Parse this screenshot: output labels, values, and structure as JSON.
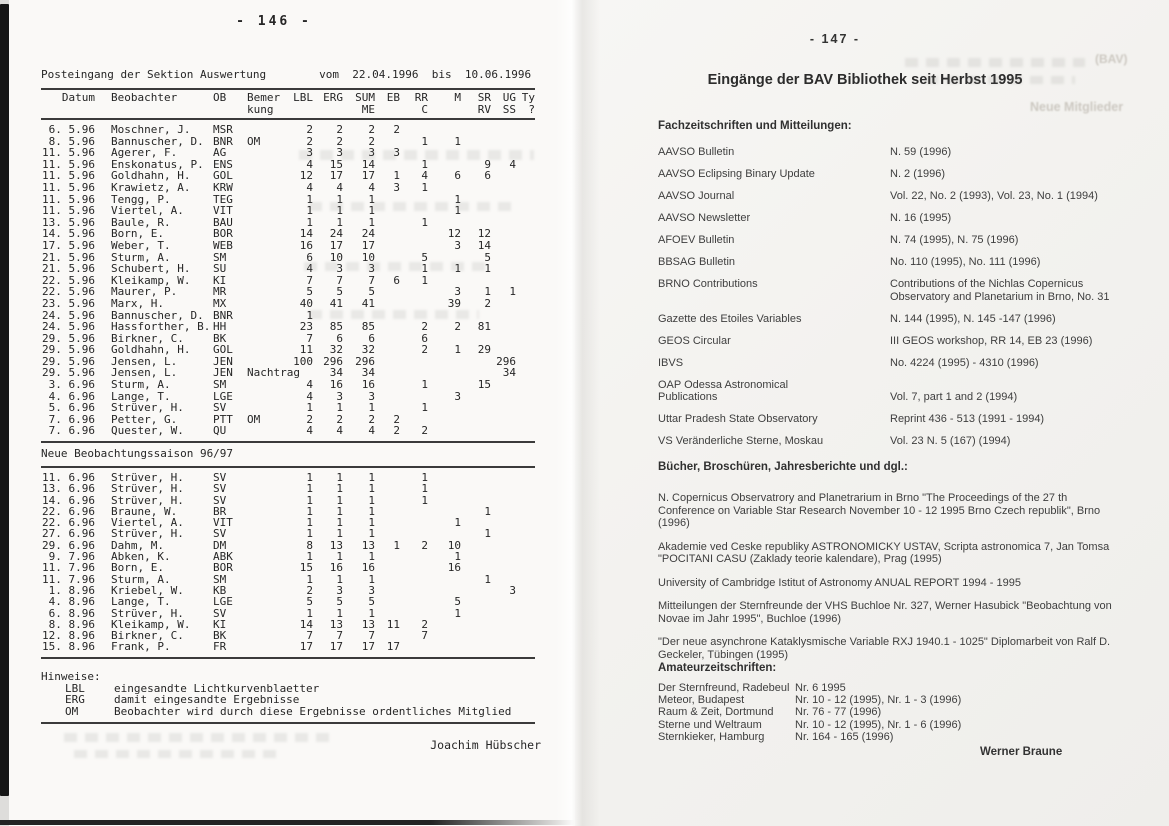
{
  "left_page": {
    "page_number": "- 146 -",
    "title_line": "Posteingang der Sektion Auswertung        vom  22.04.1996  bis  10.06.1996",
    "columns": [
      {
        "l1": "Datum",
        "l2": ""
      },
      {
        "l1": "Beobachter",
        "l2": ""
      },
      {
        "l1": "OB",
        "l2": ""
      },
      {
        "l1": "Bemer",
        "l2": "kung"
      },
      {
        "l1": "LBL",
        "l2": ""
      },
      {
        "l1": "ERG",
        "l2": ""
      },
      {
        "l1": "SUM",
        "l2": "ME"
      },
      {
        "l1": "EB",
        "l2": ""
      },
      {
        "l1": "RR",
        "l2": "C"
      },
      {
        "l1": "M",
        "l2": ""
      },
      {
        "l1": "SR",
        "l2": "RV"
      },
      {
        "l1": "UG",
        "l2": "SS"
      },
      {
        "l1": "Ty",
        "l2": "?"
      }
    ],
    "table1_rows": [
      [
        "6. 5.96",
        "Moschner, J.",
        "MSR",
        "",
        "2",
        "2",
        "2",
        "2",
        "",
        "",
        "",
        "",
        ""
      ],
      [
        "8. 5.96",
        "Bannuscher, D.",
        "BNR",
        "OM",
        "2",
        "2",
        "2",
        "",
        "1",
        "1",
        "",
        "",
        ""
      ],
      [
        "11. 5.96",
        "Agerer, F.",
        "AG",
        "",
        "3",
        "3",
        "3",
        "3",
        "",
        "",
        "",
        "",
        ""
      ],
      [
        "11. 5.96",
        "Enskonatus, P.",
        "ENS",
        "",
        "4",
        "15",
        "14",
        "",
        "1",
        "",
        "9",
        "4",
        ""
      ],
      [
        "11. 5.96",
        "Goldhahn, H.",
        "GOL",
        "",
        "12",
        "17",
        "17",
        "1",
        "4",
        "6",
        "6",
        "",
        ""
      ],
      [
        "11. 5.96",
        "Krawietz, A.",
        "KRW",
        "",
        "4",
        "4",
        "4",
        "3",
        "1",
        "",
        "",
        "",
        ""
      ],
      [
        "11. 5.96",
        "Tengg, P.",
        "TEG",
        "",
        "1",
        "1",
        "1",
        "",
        "",
        "1",
        "",
        "",
        ""
      ],
      [
        "11. 5.96",
        "Viertel, A.",
        "VIT",
        "",
        "1",
        "1",
        "1",
        "",
        "",
        "1",
        "",
        "",
        ""
      ],
      [
        "13. 5.96",
        "Baule, R.",
        "BAU",
        "",
        "1",
        "1",
        "1",
        "",
        "1",
        "",
        "",
        "",
        ""
      ],
      [
        "14. 5.96",
        "Born, E.",
        "BOR",
        "",
        "14",
        "24",
        "24",
        "",
        "",
        "12",
        "12",
        "",
        ""
      ],
      [
        "17. 5.96",
        "Weber, T.",
        "WEB",
        "",
        "16",
        "17",
        "17",
        "",
        "",
        "3",
        "14",
        "",
        ""
      ],
      [
        "21. 5.96",
        "Sturm, A.",
        "SM",
        "",
        "6",
        "10",
        "10",
        "",
        "5",
        "",
        "5",
        "",
        ""
      ],
      [
        "21. 5.96",
        "Schubert, H.",
        "SU",
        "",
        "4",
        "3",
        "3",
        "",
        "1",
        "1",
        "1",
        "",
        ""
      ],
      [
        "22. 5.96",
        "Kleikamp, W.",
        "KI",
        "",
        "7",
        "7",
        "7",
        "6",
        "1",
        "",
        "",
        "",
        ""
      ],
      [
        "22. 5.96",
        "Maurer, P.",
        "MR",
        "",
        "5",
        "5",
        "5",
        "",
        "",
        "3",
        "1",
        "1",
        ""
      ],
      [
        "23. 5.96",
        "Marx, H.",
        "MX",
        "",
        "40",
        "41",
        "41",
        "",
        "",
        "39",
        "2",
        "",
        ""
      ],
      [
        "24. 5.96",
        "Bannuscher, D.",
        "BNR",
        "",
        "1",
        "",
        "",
        "",
        "",
        "",
        "",
        "",
        ""
      ],
      [
        "24. 5.96",
        "Hassforther, B.",
        "HH",
        "",
        "23",
        "85",
        "85",
        "",
        "2",
        "2",
        "81",
        "",
        ""
      ],
      [
        "29. 5.96",
        "Birkner, C.",
        "BK",
        "",
        "7",
        "6",
        "6",
        "",
        "6",
        "",
        "",
        "",
        ""
      ],
      [
        "29. 5.96",
        "Goldhahn, H.",
        "GOL",
        "",
        "11",
        "32",
        "32",
        "",
        "2",
        "1",
        "29",
        "",
        ""
      ],
      [
        "29. 5.96",
        "Jensen, L.",
        "JEN",
        "",
        "100",
        "296",
        "296",
        "",
        "",
        "",
        "",
        "296",
        ""
      ],
      [
        "29. 5.96",
        "Jensen, L.",
        "JEN",
        "Nachtrag",
        "",
        "34",
        "34",
        "",
        "",
        "",
        "",
        "34",
        ""
      ],
      [
        "3. 6.96",
        "Sturm, A.",
        "SM",
        "",
        "4",
        "16",
        "16",
        "",
        "1",
        "",
        "15",
        "",
        ""
      ],
      [
        "4. 6.96",
        "Lange, T.",
        "LGE",
        "",
        "4",
        "3",
        "3",
        "",
        "",
        "3",
        "",
        "",
        ""
      ],
      [
        "5. 6.96",
        "Strüver, H.",
        "SV",
        "",
        "1",
        "1",
        "1",
        "",
        "1",
        "",
        "",
        "",
        ""
      ],
      [
        "7. 6.96",
        "Petter, G.",
        "PTT",
        "OM",
        "2",
        "2",
        "2",
        "2",
        "",
        "",
        "",
        "",
        ""
      ],
      [
        "7. 6.96",
        "Quester, W.",
        "QU",
        "",
        "4",
        "4",
        "4",
        "2",
        "2",
        "",
        "",
        "",
        ""
      ]
    ],
    "section2_title": "Neue Beobachtungssaison 96/97",
    "table2_rows": [
      [
        "11. 6.96",
        "Strüver, H.",
        "SV",
        "",
        "1",
        "1",
        "1",
        "",
        "1",
        "",
        "",
        "",
        ""
      ],
      [
        "13. 6.96",
        "Strüver, H.",
        "SV",
        "",
        "1",
        "1",
        "1",
        "",
        "1",
        "",
        "",
        "",
        ""
      ],
      [
        "14. 6.96",
        "Strüver, H.",
        "SV",
        "",
        "1",
        "1",
        "1",
        "",
        "1",
        "",
        "",
        "",
        ""
      ],
      [
        "22. 6.96",
        "Braune, W.",
        "BR",
        "",
        "1",
        "1",
        "1",
        "",
        "",
        "",
        "1",
        "",
        ""
      ],
      [
        "22. 6.96",
        "Viertel, A.",
        "VIT",
        "",
        "1",
        "1",
        "1",
        "",
        "",
        "1",
        "",
        "",
        ""
      ],
      [
        "27. 6.96",
        "Strüver, H.",
        "SV",
        "",
        "1",
        "1",
        "1",
        "",
        "",
        "",
        "1",
        "",
        ""
      ],
      [
        "29. 6.96",
        "Dahm, M.",
        "DM",
        "",
        "8",
        "13",
        "13",
        "1",
        "2",
        "10",
        "",
        "",
        ""
      ],
      [
        "9. 7.96",
        "Abken, K.",
        "ABK",
        "",
        "1",
        "1",
        "1",
        "",
        "",
        "1",
        "",
        "",
        ""
      ],
      [
        "11. 7.96",
        "Born, E.",
        "BOR",
        "",
        "15",
        "16",
        "16",
        "",
        "",
        "16",
        "",
        "",
        ""
      ],
      [
        "11. 7.96",
        "Sturm, A.",
        "SM",
        "",
        "1",
        "1",
        "1",
        "",
        "",
        "",
        "1",
        "",
        ""
      ],
      [
        "1. 8.96",
        "Kriebel, W.",
        "KB",
        "",
        "2",
        "3",
        "3",
        "",
        "",
        "",
        "",
        "3",
        ""
      ],
      [
        "4. 8.96",
        "Lange, T.",
        "LGE",
        "",
        "5",
        "5",
        "5",
        "",
        "",
        "5",
        "",
        "",
        ""
      ],
      [
        "6. 8.96",
        "Strüver, H.",
        "SV",
        "",
        "1",
        "1",
        "1",
        "",
        "",
        "1",
        "",
        "",
        ""
      ],
      [
        "8. 8.96",
        "Kleikamp, W.",
        "KI",
        "",
        "14",
        "13",
        "13",
        "11",
        "2",
        "",
        "",
        "",
        ""
      ],
      [
        "12. 8.96",
        "Birkner, C.",
        "BK",
        "",
        "7",
        "7",
        "7",
        "",
        "7",
        "",
        "",
        "",
        ""
      ],
      [
        "15. 8.96",
        "Frank, P.",
        "FR",
        "",
        "17",
        "17",
        "17",
        "17",
        "",
        "",
        "",
        "",
        ""
      ]
    ],
    "hinweise_title": "Hinweise:",
    "hinweise": [
      {
        "code": "LBL",
        "text": "eingesandte Lichtkurvenblaetter"
      },
      {
        "code": "ERG",
        "text": "damit eingesandte Ergebnisse"
      },
      {
        "code": "OM",
        "text": "Beobachter wird durch diese Ergebnisse ordentliches Mitglied"
      }
    ],
    "signature": "Joachim Hübscher"
  },
  "right_page": {
    "page_number": "- 147 -",
    "title": "Eingänge der BAV Bibliothek seit Herbst 1995",
    "sections": {
      "journals": {
        "heading": "Fachzeitschriften und Mitteilungen:",
        "items": [
          {
            "label": "AAVSO Bulletin",
            "value": "N. 59 (1996)"
          },
          {
            "label": "AAVSO Eclipsing Binary Update",
            "value": "N. 2 (1996)"
          },
          {
            "label": "AAVSO Journal",
            "value": "Vol. 22, No. 2 (1993), Vol. 23, No. 1 (1994)"
          },
          {
            "label": "AAVSO Newsletter",
            "value": "N. 16 (1995)"
          },
          {
            "label": "AFOEV Bulletin",
            "value": "N. 74 (1995), N. 75 (1996)"
          },
          {
            "label": "BBSAG Bulletin",
            "value": "No. 110 (1995), No. 111 (1996)"
          },
          {
            "label": "BRNO Contributions",
            "value": "Contributions of the Nichlas Copernicus Observatory and Planetarium in Brno, No. 31"
          },
          {
            "label": "Gazette des Etoiles Variables",
            "value": "N. 144 (1995), N. 145 -147 (1996)"
          },
          {
            "label": "GEOS Circular",
            "value": "III GEOS workshop, RR 14, EB 23 (1996)"
          },
          {
            "label": "IBVS",
            "value": "No. 4224 (1995) - 4310 (1996)"
          },
          {
            "label": "OAP Odessa Astronomical\nPublications",
            "value": "Vol. 7, part 1 and 2 (1994)"
          },
          {
            "label": "Uttar Pradesh State Observatory",
            "value": "Reprint 436 - 513 (1991 - 1994)"
          },
          {
            "label": "VS Veränderliche Sterne, Moskau",
            "value": "Vol. 23 N. 5 (167) (1994)"
          }
        ]
      },
      "books": {
        "heading": "Bücher, Broschüren, Jahresberichte und dgl.:",
        "items": [
          "N. Copernicus Observatrory and Planetrarium in Brno \"The Proceedings of the 27 th Conference on Variable Star Research November 10 - 12 1995  Brno Czech republik\", Brno (1996)",
          "Akademie ved Ceske republiky ASTRONOMICKY USTAV, Scripta astronomica 7, Jan Tomsa \"POCITANI CASU (Zaklady teorie kalendare), Prag (1995)",
          "University of Cambridge Istitut of Astronomy ANUAL REPORT 1994 - 1995",
          "Mitteilungen der Sternfreunde der VHS Buchloe Nr. 327, Werner Hasubick \"Beobachtung von Novae im Jahr 1995\", Buchloe (1996)",
          "\"Der neue asynchrone Kataklysmische Variable RXJ 1940.1 - 1025\" Diplomarbeit von Ralf D. Geckeler, Tübingen (1995)"
        ]
      },
      "amateur": {
        "heading": "Amateurzeitschriften:",
        "items": [
          {
            "label": "Der Sternfreund, Radebeul",
            "value": "Nr. 6 1995"
          },
          {
            "label": "Meteor, Budapest",
            "value": "Nr. 10 - 12 (1995), Nr. 1 - 3 (1996)"
          },
          {
            "label": "Raum & Zeit, Dortmund",
            "value": "Nr. 76  -  77 (1996)"
          },
          {
            "label": "Sterne und Weltraum",
            "value": "Nr. 10 - 12 (1995), Nr. 1 -  6 (1996)"
          },
          {
            "label": "Sternkieker, Hamburg",
            "value": "Nr. 164 - 165 (1996)"
          }
        ]
      }
    },
    "signature": "Werner Braune"
  },
  "artifacts": {
    "bleed_fragments": [
      {
        "text": "(BAV)"
      },
      {
        "text": "Neue Mitglieder"
      }
    ]
  }
}
